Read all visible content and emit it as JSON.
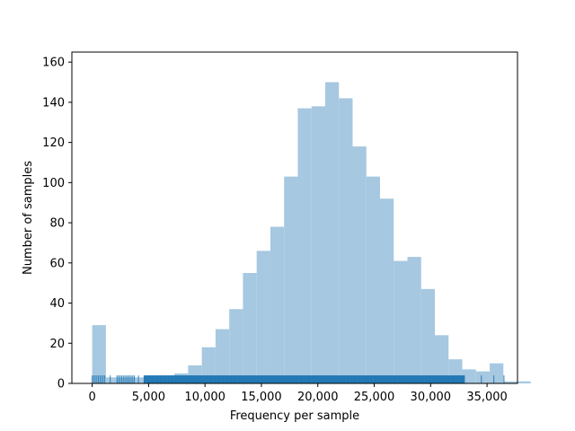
{
  "chart_data": {
    "type": "bar",
    "title": "",
    "xlabel": "Frequency per sample",
    "ylabel": "Number of samples",
    "xlim": [
      -1800,
      37700
    ],
    "ylim": [
      0,
      165
    ],
    "bin_start": 0,
    "bin_width": 1215,
    "values": [
      29,
      3,
      3,
      3,
      2,
      2,
      5,
      9,
      18,
      27,
      37,
      55,
      66,
      78,
      103,
      137,
      138,
      150,
      142,
      118,
      103,
      92,
      61,
      63,
      47,
      24,
      12,
      7,
      6,
      10,
      1,
      1
    ],
    "bar_color": "#a6c8e0",
    "rug_color": "#1f77b4",
    "rug_clusters": [
      [
        0,
        1200
      ],
      [
        2200,
        3800
      ],
      [
        4600,
        33000
      ]
    ],
    "rug_outliers": [
      1600,
      4100,
      34500,
      35600,
      36500
    ],
    "xticks": [
      {
        "value": 0,
        "label": "0"
      },
      {
        "value": 5000,
        "label": "5,000"
      },
      {
        "value": 10000,
        "label": "10,000"
      },
      {
        "value": 15000,
        "label": "15,000"
      },
      {
        "value": 20000,
        "label": "20,000"
      },
      {
        "value": 25000,
        "label": "25,000"
      },
      {
        "value": 30000,
        "label": "30,000"
      },
      {
        "value": 35000,
        "label": "35,000"
      }
    ],
    "yticks": [
      {
        "value": 0,
        "label": "0"
      },
      {
        "value": 20,
        "label": "20"
      },
      {
        "value": 40,
        "label": "40"
      },
      {
        "value": 60,
        "label": "60"
      },
      {
        "value": 80,
        "label": "80"
      },
      {
        "value": 100,
        "label": "100"
      },
      {
        "value": 120,
        "label": "120"
      },
      {
        "value": 140,
        "label": "140"
      },
      {
        "value": 160,
        "label": "160"
      }
    ],
    "grid": false,
    "legend": "none"
  }
}
